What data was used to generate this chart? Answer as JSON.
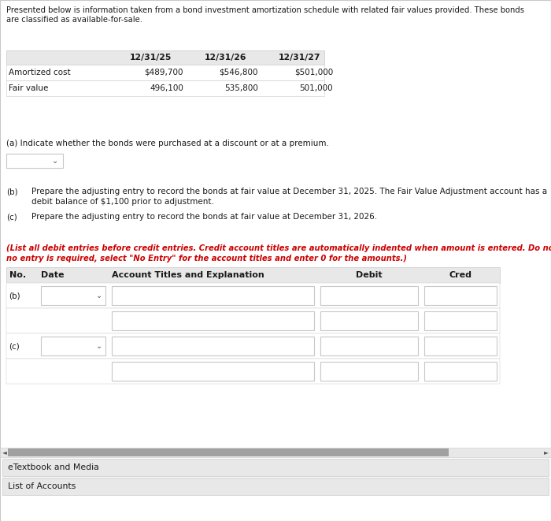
{
  "bg_color": "#f2f2f2",
  "white": "#ffffff",
  "light_gray": "#e8e8e8",
  "mid_gray": "#c8c8c8",
  "dark_gray": "#a0a0a0",
  "text_color": "#1a1a1a",
  "red_color": "#cc0000",
  "header_text_line1": "Presented below is information taken from a bond investment amortization schedule with related fair values provided. These bonds",
  "header_text_line2": "are classified as available-for-sale.",
  "table_cols": [
    "",
    "12/31/25",
    "12/31/26",
    "12/31/27"
  ],
  "table_rows": [
    [
      "Amortized cost",
      "$489,700",
      "$546,800",
      "$501,000"
    ],
    [
      "Fair value",
      "496,100",
      "535,800",
      "501,000"
    ]
  ],
  "part_a_text": "(a) Indicate whether the bonds were purchased at a discount or at a premium.",
  "part_b_label": "(b)",
  "part_b_text_line1": "Prepare the adjusting entry to record the bonds at fair value at December 31, 2025. The Fair Value Adjustment account has a",
  "part_b_text_line2": "debit balance of $1,100 prior to adjustment.",
  "part_c_label": "(c)",
  "part_c_text": "Prepare the adjusting entry to record the bonds at fair value at December 31, 2026.",
  "italic_note_line1": "(List all debit entries before credit entries. Credit account titles are automatically indented when amount is entered. Do not indent manually. If",
  "italic_note_line2": "no entry is required, select \"No Entry\" for the account titles and enter 0 for the amounts.)",
  "col_headers": [
    "No.",
    "Date",
    "Account Titles and Explanation",
    "Debit",
    "Cred"
  ],
  "entry_labels": [
    "(b)",
    "(c)"
  ],
  "etextbook_label": "eTextbook and Media",
  "list_accounts_label": "List of Accounts"
}
